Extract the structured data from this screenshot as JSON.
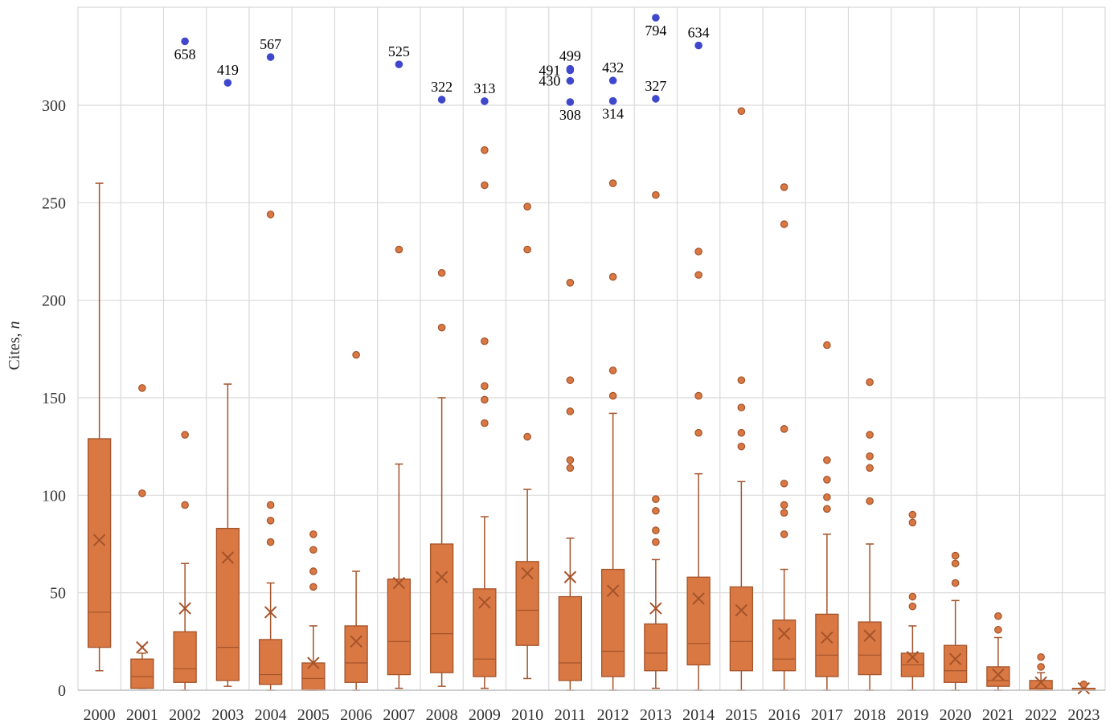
{
  "chart_data": {
    "type": "box",
    "xlabel": "",
    "ylabel": "Cites, n",
    "ylabel_main": "Cites, ",
    "ylabel_var": "n",
    "ylim": [
      0,
      350
    ],
    "yticks": [
      0,
      50,
      100,
      150,
      200,
      250,
      300
    ],
    "grid": true,
    "colors": {
      "box": "#D97843",
      "line": "#A4532A",
      "extreme": "#3F48CC",
      "grid": "#D9D9D9"
    },
    "categories": [
      "2000",
      "2001",
      "2002",
      "2003",
      "2004",
      "2005",
      "2006",
      "2007",
      "2008",
      "2009",
      "2010",
      "2011",
      "2012",
      "2013",
      "2014",
      "2015",
      "2016",
      "2017",
      "2018",
      "2019",
      "2020",
      "2021",
      "2022",
      "2023"
    ],
    "boxes": [
      {
        "year": "2000",
        "min": 10,
        "q1": 22,
        "median": 40,
        "q3": 129,
        "max": 260,
        "mean": 77,
        "outliers": []
      },
      {
        "year": "2001",
        "min": 1,
        "q1": 1,
        "median": 7,
        "q3": 16,
        "max": 19,
        "mean": 22,
        "outliers": [
          101,
          155
        ]
      },
      {
        "year": "2002",
        "min": 0,
        "q1": 4,
        "median": 11,
        "q3": 30,
        "max": 65,
        "mean": 42,
        "outliers": [
          95,
          131
        ]
      },
      {
        "year": "2003",
        "min": 2,
        "q1": 5,
        "median": 22,
        "q3": 83,
        "max": 157,
        "mean": 68,
        "outliers": []
      },
      {
        "year": "2004",
        "min": 0,
        "q1": 3,
        "median": 8,
        "q3": 26,
        "max": 55,
        "mean": 40,
        "outliers": [
          76,
          87,
          95,
          244
        ]
      },
      {
        "year": "2005",
        "min": 0,
        "q1": 0,
        "median": 6,
        "q3": 14,
        "max": 33,
        "mean": 14,
        "outliers": [
          53,
          61,
          72,
          80
        ]
      },
      {
        "year": "2006",
        "min": 0,
        "q1": 4,
        "median": 14,
        "q3": 33,
        "max": 61,
        "mean": 25,
        "outliers": [
          172
        ]
      },
      {
        "year": "2007",
        "min": 1,
        "q1": 8,
        "median": 25,
        "q3": 57,
        "max": 116,
        "mean": 55,
        "outliers": [
          226
        ]
      },
      {
        "year": "2008",
        "min": 2,
        "q1": 9,
        "median": 29,
        "q3": 75,
        "max": 150,
        "mean": 58,
        "outliers": [
          186,
          214
        ]
      },
      {
        "year": "2009",
        "min": 1,
        "q1": 7,
        "median": 16,
        "q3": 52,
        "max": 89,
        "mean": 45,
        "outliers": [
          137,
          149,
          156,
          179,
          259,
          277
        ]
      },
      {
        "year": "2010",
        "min": 6,
        "q1": 23,
        "median": 41,
        "q3": 66,
        "max": 103,
        "mean": 60,
        "outliers": [
          130,
          226,
          248
        ]
      },
      {
        "year": "2011",
        "min": 0,
        "q1": 5,
        "median": 14,
        "q3": 48,
        "max": 78,
        "mean": 58,
        "outliers": [
          114,
          118,
          143,
          159,
          209
        ]
      },
      {
        "year": "2012",
        "min": 0,
        "q1": 7,
        "median": 20,
        "q3": 62,
        "max": 142,
        "mean": 51,
        "outliers": [
          151,
          164,
          212,
          260
        ]
      },
      {
        "year": "2013",
        "min": 1,
        "q1": 10,
        "median": 19,
        "q3": 34,
        "max": 67,
        "mean": 42,
        "outliers": [
          76,
          82,
          92,
          98,
          254
        ]
      },
      {
        "year": "2014",
        "min": 0,
        "q1": 13,
        "median": 24,
        "q3": 58,
        "max": 111,
        "mean": 47,
        "outliers": [
          132,
          151,
          213,
          225
        ]
      },
      {
        "year": "2015",
        "min": 0,
        "q1": 10,
        "median": 25,
        "q3": 53,
        "max": 107,
        "mean": 41,
        "outliers": [
          125,
          132,
          145,
          159,
          297
        ]
      },
      {
        "year": "2016",
        "min": 0,
        "q1": 10,
        "median": 16,
        "q3": 36,
        "max": 62,
        "mean": 29,
        "outliers": [
          80,
          91,
          95,
          106,
          134,
          239,
          258
        ]
      },
      {
        "year": "2017",
        "min": 0,
        "q1": 7,
        "median": 18,
        "q3": 39,
        "max": 80,
        "mean": 27,
        "outliers": [
          93,
          99,
          108,
          118,
          177
        ]
      },
      {
        "year": "2018",
        "min": 0,
        "q1": 8,
        "median": 18,
        "q3": 35,
        "max": 75,
        "mean": 28,
        "outliers": [
          97,
          114,
          120,
          131,
          158
        ]
      },
      {
        "year": "2019",
        "min": 0,
        "q1": 7,
        "median": 13,
        "q3": 19,
        "max": 33,
        "mean": 17,
        "outliers": [
          43,
          48,
          86,
          90
        ]
      },
      {
        "year": "2020",
        "min": 0,
        "q1": 4,
        "median": 10,
        "q3": 23,
        "max": 46,
        "mean": 16,
        "outliers": [
          55,
          65,
          69
        ]
      },
      {
        "year": "2021",
        "min": 0,
        "q1": 2,
        "median": 5,
        "q3": 12,
        "max": 27,
        "mean": 8,
        "outliers": [
          31,
          38
        ]
      },
      {
        "year": "2022",
        "min": 0,
        "q1": 0,
        "median": 1,
        "q3": 5,
        "max": 9,
        "mean": 4,
        "outliers": [
          12,
          17
        ]
      },
      {
        "year": "2023",
        "min": 0,
        "q1": 0,
        "median": 0,
        "q3": 1,
        "max": 1,
        "mean": 1,
        "outliers": [
          3
        ]
      }
    ],
    "extremes": [
      {
        "year": "2002",
        "value": 658,
        "label": "658",
        "label_pos": "below"
      },
      {
        "year": "2003",
        "value": 419,
        "label": "419",
        "label_pos": "above"
      },
      {
        "year": "2004",
        "value": 567,
        "label": "567",
        "label_pos": "above"
      },
      {
        "year": "2007",
        "value": 525,
        "label": "525",
        "label_pos": "above"
      },
      {
        "year": "2008",
        "value": 322,
        "label": "322",
        "label_pos": "above"
      },
      {
        "year": "2009",
        "value": 313,
        "label": "313",
        "label_pos": "above"
      },
      {
        "year": "2011",
        "value": 499,
        "label": "499",
        "label_pos": "above"
      },
      {
        "year": "2011",
        "value": 491,
        "label": "491",
        "label_pos": "left"
      },
      {
        "year": "2011",
        "value": 430,
        "label": "430",
        "label_pos": "left"
      },
      {
        "year": "2011",
        "value": 308,
        "label": "308",
        "label_pos": "below"
      },
      {
        "year": "2012",
        "value": 432,
        "label": "432",
        "label_pos": "above"
      },
      {
        "year": "2012",
        "value": 314,
        "label": "314",
        "label_pos": "below"
      },
      {
        "year": "2013",
        "value": 794,
        "label": "794",
        "label_pos": "below"
      },
      {
        "year": "2013",
        "value": 327,
        "label": "327",
        "label_pos": "above"
      },
      {
        "year": "2014",
        "value": 634,
        "label": "634",
        "label_pos": "above"
      }
    ]
  }
}
